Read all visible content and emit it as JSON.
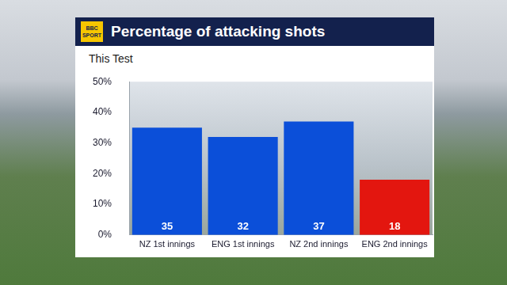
{
  "chart_data": {
    "type": "bar",
    "title": "Percentage of attacking shots",
    "subtitle": "This Test",
    "brand": "BBC SPORT",
    "categories": [
      "NZ 1st innings",
      "ENG 1st innings",
      "NZ 2nd innings",
      "ENG 2nd innings"
    ],
    "values": [
      35,
      32,
      37,
      18
    ],
    "colors": [
      "#0b4fd9",
      "#0b4fd9",
      "#0b4fd9",
      "#e3160f"
    ],
    "ylim": [
      0,
      50
    ],
    "yticks": [
      {
        "value": 0,
        "label": "0%"
      },
      {
        "value": 10,
        "label": "10%"
      },
      {
        "value": 20,
        "label": "20%"
      },
      {
        "value": 30,
        "label": "30%"
      },
      {
        "value": 40,
        "label": "40%"
      },
      {
        "value": 50,
        "label": "50%"
      }
    ],
    "grid": false,
    "data_labels": true
  }
}
